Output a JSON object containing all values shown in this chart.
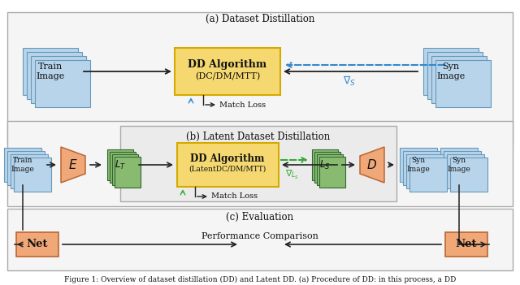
{
  "bg_color": "#ffffff",
  "panel_a_title": "(a) Dataset Distillation",
  "panel_b_title": "(b) Latent Dataset Distillation",
  "panel_c_title": "(c) Evaluation",
  "caption": "Figure 1: Overview of dataset distillation (DD) and Latent DD. (a) Procedure of DD: in this process, a DD",
  "colors": {
    "blue_img": "#b8d4ea",
    "blue_img_border": "#6699bb",
    "blue_img_fill": "#c8dff0",
    "yellow_box": "#f5d870",
    "yellow_border": "#d4aa00",
    "yellow_fill": "#f8e080",
    "green_img": "#88bb70",
    "green_img_border": "#336633",
    "green_img_fill": "#aad090",
    "orange_box": "#f0a878",
    "orange_border": "#bb6633",
    "arrow": "#222222",
    "dashed_blue": "#3388cc",
    "dashed_green": "#33aa33",
    "panel_bg": "#f5f5f5",
    "panel_border": "#aaaaaa",
    "inner_bg": "#ebebeb",
    "text": "#111111"
  }
}
